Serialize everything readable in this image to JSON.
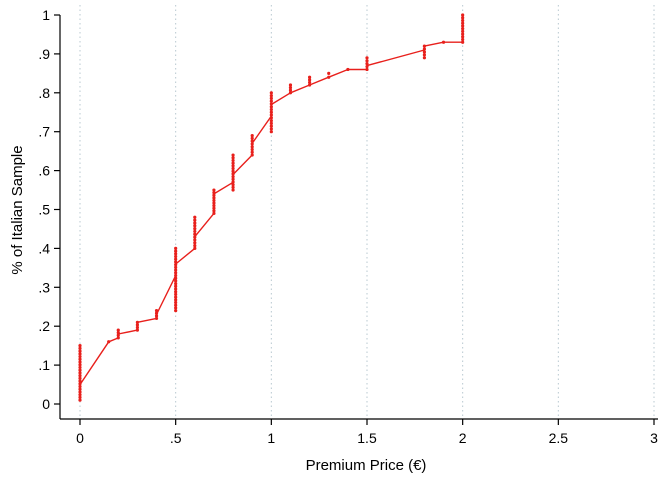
{
  "chart_data": {
    "type": "line",
    "title": "",
    "xlabel": "Premium Price (€)",
    "ylabel": "% of Italian Sample",
    "xlim": [
      0,
      3
    ],
    "ylim": [
      0,
      1
    ],
    "grid": "vertical dashed at x ticks",
    "x_ticks": [
      0,
      0.5,
      1,
      1.5,
      2,
      2.5,
      3
    ],
    "x_tick_labels": [
      "0",
      ".5",
      "1",
      "1.5",
      "2",
      "2.5",
      "3"
    ],
    "y_ticks": [
      0,
      0.1,
      0.2,
      0.3,
      0.4,
      0.5,
      0.6,
      0.7,
      0.8,
      0.9,
      1
    ],
    "y_tick_labels": [
      "0",
      ".1",
      ".2",
      ".3",
      ".4",
      ".5",
      ".6",
      ".7",
      ".8",
      ".9",
      "1"
    ],
    "series_color": "#e8201c",
    "series": [
      {
        "values_xy": [
          [
            0,
            0.05
          ],
          [
            0.15,
            0.16
          ],
          [
            0.2,
            0.17
          ],
          [
            0.2,
            0.18
          ],
          [
            0.3,
            0.19
          ],
          [
            0.3,
            0.21
          ],
          [
            0.4,
            0.22
          ],
          [
            0.4,
            0.23
          ],
          [
            0.5,
            0.33
          ],
          [
            0.5,
            0.36
          ],
          [
            0.6,
            0.4
          ],
          [
            0.6,
            0.43
          ],
          [
            0.7,
            0.49
          ],
          [
            0.7,
            0.54
          ],
          [
            0.8,
            0.57
          ],
          [
            0.8,
            0.59
          ],
          [
            0.9,
            0.64
          ],
          [
            0.9,
            0.67
          ],
          [
            1,
            0.74
          ],
          [
            1,
            0.77
          ],
          [
            1.1,
            0.8
          ],
          [
            1.2,
            0.82
          ],
          [
            1.3,
            0.84
          ],
          [
            1.4,
            0.86
          ],
          [
            1.5,
            0.86
          ],
          [
            1.5,
            0.87
          ],
          [
            1.8,
            0.91
          ],
          [
            1.8,
            0.92
          ],
          [
            1.9,
            0.93
          ],
          [
            2,
            0.93
          ],
          [
            2,
            1.0
          ]
        ]
      }
    ],
    "point_clusters": [
      {
        "x": 0,
        "ymin": 0.01,
        "ymax": 0.15
      },
      {
        "x": 0.15,
        "ymin": 0.16,
        "ymax": 0.16
      },
      {
        "x": 0.2,
        "ymin": 0.17,
        "ymax": 0.19
      },
      {
        "x": 0.3,
        "ymin": 0.19,
        "ymax": 0.21
      },
      {
        "x": 0.4,
        "ymin": 0.22,
        "ymax": 0.24
      },
      {
        "x": 0.5,
        "ymin": 0.24,
        "ymax": 0.4
      },
      {
        "x": 0.6,
        "ymin": 0.4,
        "ymax": 0.48
      },
      {
        "x": 0.7,
        "ymin": 0.49,
        "ymax": 0.55
      },
      {
        "x": 0.8,
        "ymin": 0.55,
        "ymax": 0.64
      },
      {
        "x": 0.9,
        "ymin": 0.64,
        "ymax": 0.69
      },
      {
        "x": 1,
        "ymin": 0.7,
        "ymax": 0.8
      },
      {
        "x": 1.1,
        "ymin": 0.8,
        "ymax": 0.82
      },
      {
        "x": 1.2,
        "ymin": 0.82,
        "ymax": 0.84
      },
      {
        "x": 1.3,
        "ymin": 0.84,
        "ymax": 0.85
      },
      {
        "x": 1.4,
        "ymin": 0.86,
        "ymax": 0.86
      },
      {
        "x": 1.5,
        "ymin": 0.86,
        "ymax": 0.89
      },
      {
        "x": 1.8,
        "ymin": 0.89,
        "ymax": 0.92
      },
      {
        "x": 1.9,
        "ymin": 0.93,
        "ymax": 0.93
      },
      {
        "x": 2,
        "ymin": 0.93,
        "ymax": 1.0
      }
    ]
  }
}
